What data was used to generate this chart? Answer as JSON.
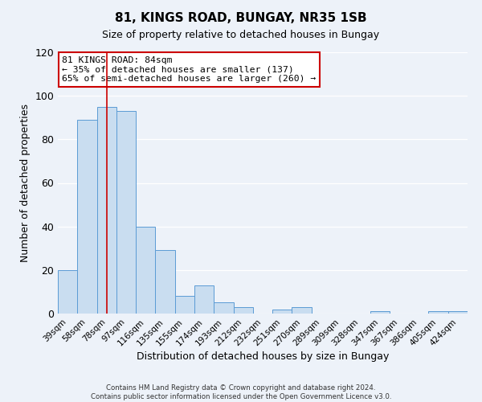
{
  "title": "81, KINGS ROAD, BUNGAY, NR35 1SB",
  "subtitle": "Size of property relative to detached houses in Bungay",
  "xlabel": "Distribution of detached houses by size in Bungay",
  "ylabel": "Number of detached properties",
  "bin_labels": [
    "39sqm",
    "58sqm",
    "78sqm",
    "97sqm",
    "116sqm",
    "135sqm",
    "155sqm",
    "174sqm",
    "193sqm",
    "212sqm",
    "232sqm",
    "251sqm",
    "270sqm",
    "289sqm",
    "309sqm",
    "328sqm",
    "347sqm",
    "367sqm",
    "386sqm",
    "405sqm",
    "424sqm"
  ],
  "bar_heights": [
    20,
    89,
    95,
    93,
    40,
    29,
    8,
    13,
    5,
    3,
    0,
    2,
    3,
    0,
    0,
    0,
    1,
    0,
    0,
    1,
    1
  ],
  "bar_color": "#c9ddf0",
  "bar_edge_color": "#5b9bd5",
  "vline_x": 2,
  "vline_color": "#cc0000",
  "ylim": [
    0,
    120
  ],
  "yticks": [
    0,
    20,
    40,
    60,
    80,
    100,
    120
  ],
  "annotation_line1": "81 KINGS ROAD: 84sqm",
  "annotation_line2": "← 35% of detached houses are smaller (137)",
  "annotation_line3": "65% of semi-detached houses are larger (260) →",
  "annotation_box_color": "#ffffff",
  "annotation_box_edge": "#cc0000",
  "footer_line1": "Contains HM Land Registry data © Crown copyright and database right 2024.",
  "footer_line2": "Contains public sector information licensed under the Open Government Licence v3.0.",
  "bg_color": "#edf2f9",
  "plot_bg_color": "#edf2f9",
  "grid_color": "#ffffff",
  "title_fontsize": 11,
  "subtitle_fontsize": 9
}
